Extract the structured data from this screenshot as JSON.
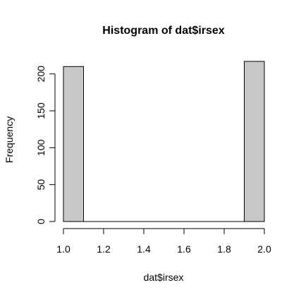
{
  "chart_data": {
    "type": "bar",
    "title": "Histogram of dat$irsex",
    "xlabel": "dat$irsex",
    "ylabel": "Frequency",
    "bin_edges": [
      1.0,
      1.1,
      1.2,
      1.3,
      1.4,
      1.5,
      1.6,
      1.7,
      1.8,
      1.9,
      2.0
    ],
    "values": [
      210,
      0,
      0,
      0,
      0,
      0,
      0,
      0,
      0,
      217
    ],
    "xlim": [
      1.0,
      2.0
    ],
    "ylim": [
      0,
      217
    ],
    "x_ticks": [
      1.0,
      1.2,
      1.4,
      1.6,
      1.8,
      2.0
    ],
    "x_tick_labels": [
      "1.0",
      "1.2",
      "1.4",
      "1.6",
      "1.8",
      "2.0"
    ],
    "y_ticks": [
      0,
      50,
      100,
      150,
      200
    ],
    "y_tick_labels": [
      "0",
      "50",
      "100",
      "150",
      "200"
    ],
    "grid": false,
    "colors": {
      "bar_fill": "#c8c8c8",
      "bar_stroke": "#000000",
      "axis": "#000000"
    }
  }
}
